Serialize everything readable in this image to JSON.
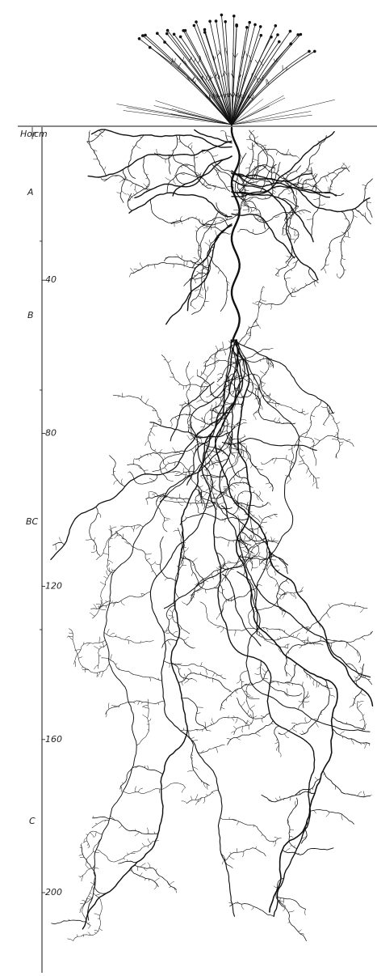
{
  "header": {
    "horizon": "Hor",
    "unit": "cm"
  },
  "horizons": [
    "A",
    "B",
    "BC",
    "C"
  ],
  "depth_ticks": [
    40,
    80,
    120,
    160,
    200
  ]
}
